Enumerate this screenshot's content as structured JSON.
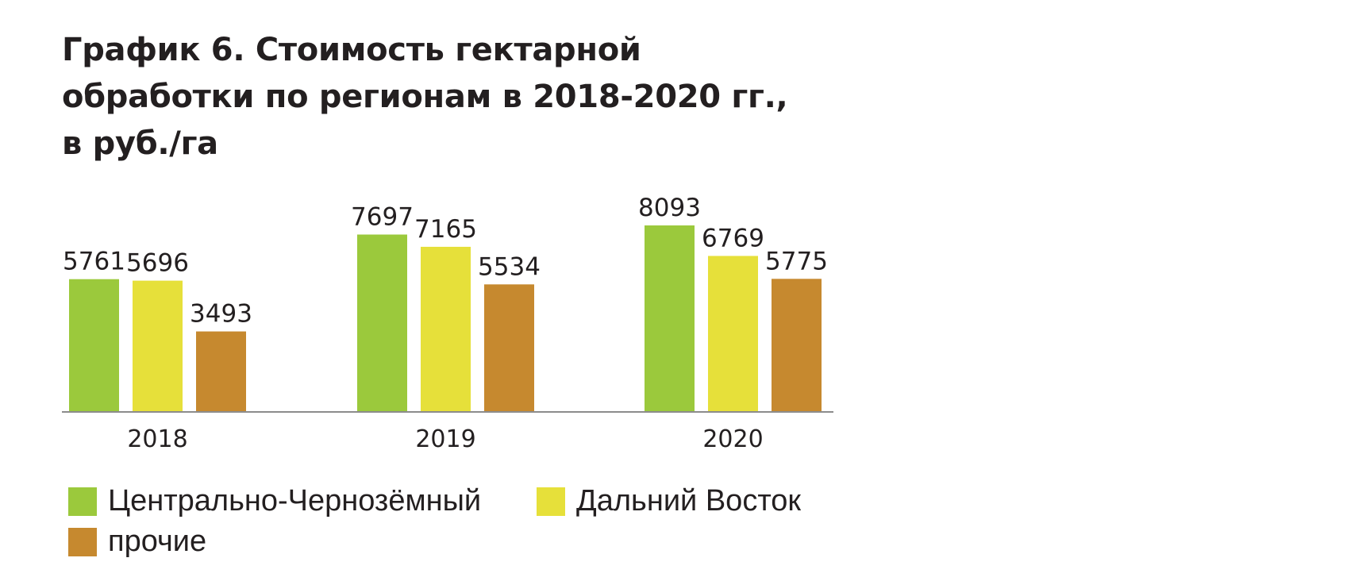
{
  "title_lines": [
    "График 6. Стоимость гектарной",
    "обработки по регионам в 2018-2020 гг.,",
    "в руб./га"
  ],
  "chart_data": {
    "type": "bar",
    "title": "График 6. Стоимость гектарной обработки по регионам в 2018-2020 гг., в руб./га",
    "categories": [
      "2018",
      "2019",
      "2020"
    ],
    "series": [
      {
        "name": "Центрально-Чернозёмный",
        "values": [
          5761,
          7697,
          8093
        ],
        "color": "#9bc93c"
      },
      {
        "name": "Дальний Восток",
        "values": [
          5696,
          7165,
          6769
        ],
        "color": "#e6e03a"
      },
      {
        "name": "прочие",
        "values": [
          3493,
          5534,
          5775
        ],
        "color": "#c6892f"
      }
    ],
    "ylim": [
      0,
      8500
    ],
    "grid": false,
    "legend_placement": "bottom"
  },
  "legend": [
    {
      "label": "Центрально-Чернозёмный",
      "color": "#9bc93c"
    },
    {
      "label": "Дальний Восток",
      "color": "#e6e03a"
    },
    {
      "label": "прочие",
      "color": "#c6892f"
    }
  ]
}
